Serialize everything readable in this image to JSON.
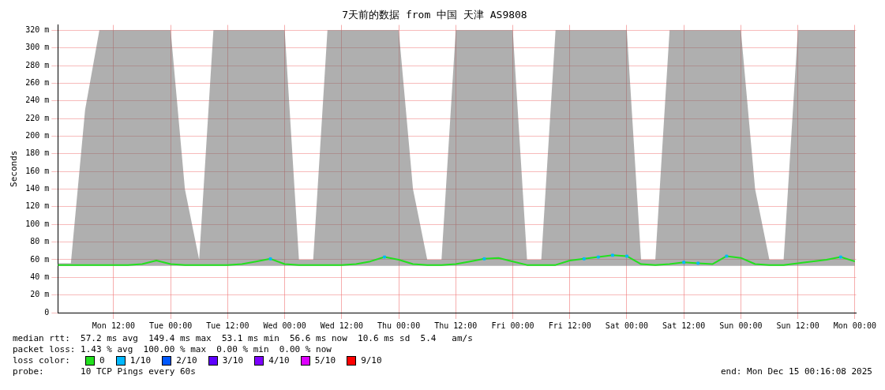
{
  "chart_data": {
    "type": "line",
    "title": "7天前的数据 from 中国 天津 AS9808",
    "ylabel": "Seconds",
    "x": [
      "2025-12-08T00:16",
      "2025-12-08T03:00",
      "2025-12-08T06:00",
      "2025-12-08T09:00",
      "2025-12-08T12:00",
      "2025-12-08T15:00",
      "2025-12-08T18:00",
      "2025-12-08T21:00",
      "2025-12-09T00:00",
      "2025-12-09T03:00",
      "2025-12-09T06:00",
      "2025-12-09T09:00",
      "2025-12-09T12:00",
      "2025-12-09T15:00",
      "2025-12-09T18:00",
      "2025-12-09T21:00",
      "2025-12-10T00:00",
      "2025-12-10T03:00",
      "2025-12-10T06:00",
      "2025-12-10T09:00",
      "2025-12-10T12:00",
      "2025-12-10T15:00",
      "2025-12-10T18:00",
      "2025-12-10T21:00",
      "2025-12-11T00:00",
      "2025-12-11T03:00",
      "2025-12-11T06:00",
      "2025-12-11T09:00",
      "2025-12-11T12:00",
      "2025-12-11T15:00",
      "2025-12-11T18:00",
      "2025-12-11T21:00",
      "2025-12-12T00:00",
      "2025-12-12T03:00",
      "2025-12-12T06:00",
      "2025-12-12T09:00",
      "2025-12-12T12:00",
      "2025-12-12T15:00",
      "2025-12-12T18:00",
      "2025-12-12T21:00",
      "2025-12-13T00:00",
      "2025-12-13T03:00",
      "2025-12-13T06:00",
      "2025-12-13T09:00",
      "2025-12-13T12:00",
      "2025-12-13T15:00",
      "2025-12-13T18:00",
      "2025-12-13T21:00",
      "2025-12-14T00:00",
      "2025-12-14T03:00",
      "2025-12-14T06:00",
      "2025-12-14T09:00",
      "2025-12-14T12:00",
      "2025-12-14T15:00",
      "2025-12-14T18:00",
      "2025-12-14T21:00",
      "2025-12-15T00:00"
    ],
    "series": [
      {
        "name": "0",
        "color": "#22e01e",
        "values": [
          54,
          54,
          54,
          54,
          54,
          54,
          55,
          59,
          55,
          54,
          54,
          54,
          54,
          55,
          58,
          61,
          55,
          54,
          54,
          54,
          54,
          55,
          58,
          63,
          60,
          55,
          54,
          54,
          55,
          58,
          61,
          62,
          58,
          54,
          54,
          54,
          59,
          61,
          63,
          65,
          64,
          55,
          54,
          55,
          57,
          56,
          55,
          64,
          62,
          55,
          54,
          54,
          56,
          58,
          60,
          63,
          58
        ],
        "lower": [
          53,
          53,
          53,
          53,
          53,
          53,
          53,
          53,
          53,
          53,
          53,
          53,
          53,
          53,
          53,
          53,
          53,
          53,
          53,
          53,
          53,
          53,
          53,
          53,
          53,
          53,
          53,
          53,
          53,
          53,
          53,
          53,
          53,
          53,
          53,
          53,
          53,
          53,
          53,
          53,
          53,
          53,
          53,
          53,
          53,
          53,
          53,
          53,
          53,
          53,
          53,
          53,
          53,
          53,
          53,
          53,
          53
        ],
        "upper": [
          56,
          56,
          230,
          320,
          320,
          320,
          320,
          320,
          320,
          140,
          60,
          320,
          320,
          320,
          320,
          320,
          320,
          60,
          60,
          320,
          320,
          320,
          320,
          320,
          320,
          140,
          60,
          60,
          320,
          320,
          320,
          320,
          320,
          60,
          60,
          320,
          320,
          320,
          320,
          320,
          320,
          60,
          60,
          320,
          320,
          320,
          320,
          320,
          320,
          140,
          60,
          60,
          320,
          320,
          320,
          320,
          320
        ]
      },
      {
        "name": "1/10",
        "type": "scatter",
        "color": "#00b8ff",
        "values": [
          null,
          null,
          null,
          null,
          null,
          null,
          null,
          null,
          null,
          null,
          null,
          null,
          null,
          null,
          null,
          61,
          null,
          null,
          null,
          null,
          null,
          null,
          null,
          63,
          null,
          null,
          null,
          null,
          null,
          null,
          61,
          null,
          null,
          null,
          null,
          null,
          null,
          61,
          63,
          65,
          64,
          null,
          null,
          null,
          57,
          56,
          null,
          64,
          null,
          null,
          null,
          null,
          null,
          null,
          null,
          63,
          null
        ]
      },
      {
        "name": "2/10",
        "color": "#0058ff",
        "values": [
          null,
          null,
          null,
          null,
          null,
          null,
          null,
          null,
          null,
          null,
          null,
          null,
          null,
          null,
          null,
          null,
          null,
          null,
          null,
          null,
          null,
          null,
          null,
          null,
          null,
          null,
          null,
          null,
          null,
          null,
          null,
          null,
          null,
          null,
          null,
          null,
          null,
          null,
          null,
          null,
          null,
          null,
          null,
          null,
          null,
          null,
          null,
          null,
          null,
          null,
          null,
          null,
          null,
          null,
          null,
          null,
          null
        ]
      },
      {
        "name": "3/10",
        "color": "#5e00ff",
        "values": [
          null,
          null,
          null,
          null,
          null,
          null,
          null,
          null,
          null,
          null,
          null,
          null,
          null,
          null,
          null,
          null,
          null,
          null,
          null,
          null,
          null,
          null,
          null,
          null,
          null,
          null,
          null,
          null,
          null,
          null,
          null,
          null,
          null,
          null,
          null,
          null,
          null,
          null,
          null,
          null,
          null,
          null,
          null,
          null,
          null,
          null,
          null,
          null,
          null,
          null,
          null,
          null,
          null,
          null,
          null,
          null,
          null
        ]
      },
      {
        "name": "4/10",
        "color": "#7e00ff",
        "values": [
          null,
          null,
          null,
          null,
          null,
          null,
          null,
          null,
          null,
          null,
          null,
          null,
          null,
          null,
          null,
          null,
          null,
          null,
          null,
          null,
          null,
          null,
          null,
          null,
          null,
          null,
          null,
          null,
          null,
          null,
          null,
          null,
          null,
          null,
          null,
          null,
          null,
          null,
          null,
          null,
          null,
          null,
          null,
          null,
          null,
          null,
          null,
          null,
          null,
          null,
          null,
          null,
          null,
          null,
          null,
          null,
          null
        ]
      },
      {
        "name": "5/10",
        "color": "#dd00ff",
        "values": [
          null,
          null,
          null,
          null,
          null,
          null,
          null,
          null,
          null,
          null,
          null,
          null,
          null,
          null,
          null,
          null,
          null,
          null,
          null,
          null,
          null,
          null,
          null,
          null,
          null,
          null,
          null,
          null,
          null,
          null,
          null,
          null,
          null,
          null,
          null,
          null,
          null,
          null,
          null,
          null,
          null,
          null,
          null,
          null,
          null,
          null,
          null,
          null,
          null,
          null,
          null,
          null,
          null,
          null,
          null,
          null,
          null
        ]
      },
      {
        "name": "9/10",
        "color": "#ff0000",
        "values": [
          null,
          null,
          null,
          null,
          null,
          null,
          null,
          null,
          null,
          null,
          null,
          null,
          null,
          null,
          null,
          null,
          null,
          null,
          null,
          null,
          null,
          null,
          null,
          null,
          null,
          null,
          null,
          null,
          null,
          null,
          null,
          null,
          null,
          null,
          null,
          null,
          null,
          null,
          null,
          null,
          null,
          null,
          null,
          null,
          null,
          null,
          null,
          null,
          null,
          null,
          null,
          null,
          null,
          null,
          null,
          null,
          null
        ]
      }
    ],
    "xlim": [
      "2025-12-08T00:16",
      "2025-12-15T00:16"
    ],
    "xticks": [
      {
        "value": "2025-12-08T12:00",
        "label": "Mon 12:00"
      },
      {
        "value": "2025-12-09T00:00",
        "label": "Tue 00:00"
      },
      {
        "value": "2025-12-09T12:00",
        "label": "Tue 12:00"
      },
      {
        "value": "2025-12-10T00:00",
        "label": "Wed 00:00"
      },
      {
        "value": "2025-12-10T12:00",
        "label": "Wed 12:00"
      },
      {
        "value": "2025-12-11T00:00",
        "label": "Thu 00:00"
      },
      {
        "value": "2025-12-11T12:00",
        "label": "Thu 12:00"
      },
      {
        "value": "2025-12-12T00:00",
        "label": "Fri 00:00"
      },
      {
        "value": "2025-12-12T12:00",
        "label": "Fri 12:00"
      },
      {
        "value": "2025-12-13T00:00",
        "label": "Sat 00:00"
      },
      {
        "value": "2025-12-13T12:00",
        "label": "Sat 12:00"
      },
      {
        "value": "2025-12-14T00:00",
        "label": "Sun 00:00"
      },
      {
        "value": "2025-12-14T12:00",
        "label": "Sun 12:00"
      },
      {
        "value": "2025-12-15T00:00",
        "label": "Mon 00:00"
      }
    ],
    "ylim": [
      0,
      326
    ],
    "yticks": [
      0,
      {
        "value": 20,
        "label": "20 m"
      },
      {
        "value": 40,
        "label": "40 m"
      },
      {
        "value": 60,
        "label": "60 m"
      },
      {
        "value": 80,
        "label": "80 m"
      },
      {
        "value": 100,
        "label": "100 m"
      },
      {
        "value": 120,
        "label": "120 m"
      },
      {
        "value": 140,
        "label": "140 m"
      },
      {
        "value": 160,
        "label": "160 m"
      },
      {
        "value": 180,
        "label": "180 m"
      },
      {
        "value": 200,
        "label": "200 m"
      },
      {
        "value": 220,
        "label": "220 m"
      },
      {
        "value": 240,
        "label": "240 m"
      },
      {
        "value": 260,
        "label": "260 m"
      },
      {
        "value": 280,
        "label": "280 m"
      },
      {
        "value": 300,
        "label": "300 m"
      },
      {
        "value": 320,
        "label": "320 m"
      }
    ],
    "grid": true,
    "legend": "bottom",
    "annotations": [
      "median rtt:  57.2 ms avg  149.4 ms max  53.1 ms min  56.6 ms now  10.6 ms sd  5.4   am/s",
      "packet loss: 1.43 % avg  100.00 % max  0.00 % min  0.00 % now",
      "loss color:",
      "probe:       10 TCP Pings every 60s",
      "end: Mon Dec 15 00:16:08 2025"
    ]
  }
}
